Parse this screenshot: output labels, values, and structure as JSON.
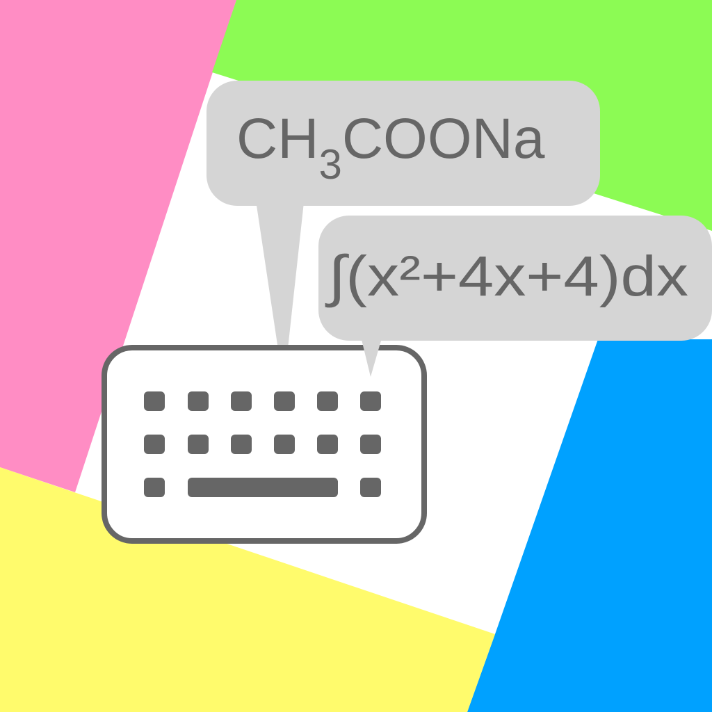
{
  "app_icon": {
    "colors": {
      "pink": "#ff8dc4",
      "green": "#8cfb54",
      "blue": "#00a1ff",
      "yellow": "#fffb6c",
      "white": "#ffffff",
      "bubble": "#d5d5d5",
      "ink": "#666666"
    },
    "bubble_chemistry": {
      "prefix": "CH",
      "subscript": "3",
      "suffix": "COONa"
    },
    "bubble_math": {
      "text": "∫(x²+4x+4)dx"
    },
    "keyboard_icon": "keyboard-icon"
  }
}
